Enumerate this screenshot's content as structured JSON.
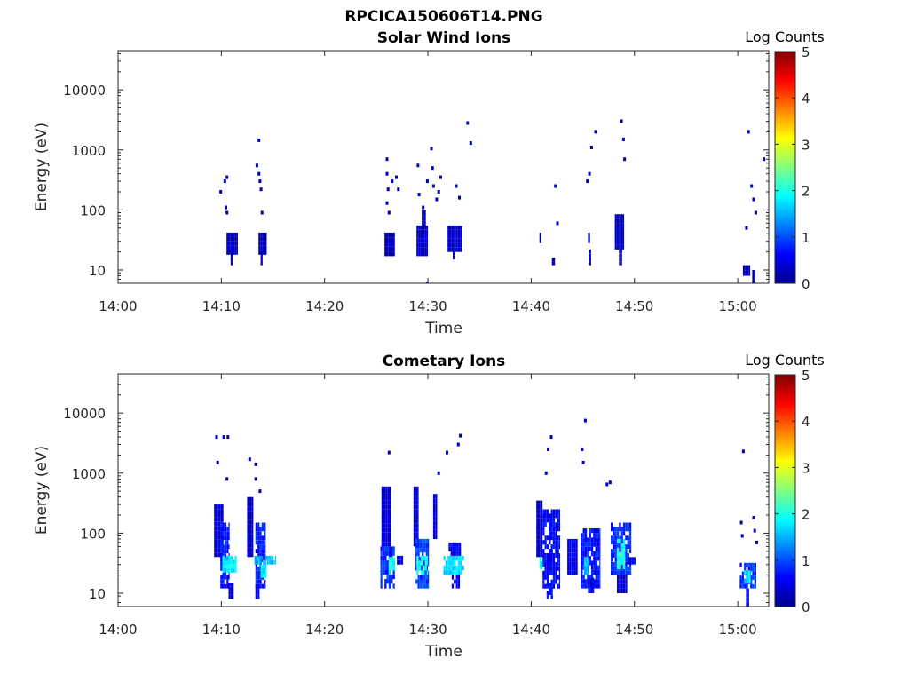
{
  "figure_title": "RPCICA150606T14.PNG",
  "colorbar_title": "Log Counts",
  "colormap": [
    "#00008f",
    "#0000ff",
    "#0080ff",
    "#00ffff",
    "#80ff80",
    "#ffff00",
    "#ff8000",
    "#ff0000",
    "#800000"
  ],
  "chart_data": [
    {
      "type": "heatmap",
      "title": "Solar Wind Ions",
      "xlabel": "Time",
      "ylabel": "Energy (eV)",
      "x_ticks": [
        "14:00",
        "14:10",
        "14:20",
        "14:30",
        "14:40",
        "14:50",
        "15:00"
      ],
      "x_range_minutes": [
        0,
        63
      ],
      "y_scale": "log",
      "y_range": [
        6,
        45000
      ],
      "y_ticks": [
        {
          "value": 10,
          "label": "10"
        },
        {
          "value": 100,
          "label": "100"
        },
        {
          "value": 1000,
          "label": "1000"
        },
        {
          "value": 10000,
          "label": "10000"
        }
      ],
      "colorbar": {
        "label": "Log Counts",
        "range": [
          0,
          5
        ],
        "ticks": [
          "0",
          "1",
          "2",
          "3",
          "4",
          "5"
        ]
      },
      "legend": "colorbar right",
      "blocks": [
        {
          "t0": 10.5,
          "t1": 11.6,
          "e0": 18,
          "e1": 42,
          "c": 0.25
        },
        {
          "t0": 10.9,
          "t1": 11.1,
          "e0": 12,
          "e1": 22,
          "c": 0.2
        },
        {
          "t0": 13.6,
          "t1": 14.4,
          "e0": 18,
          "e1": 42,
          "c": 0.25
        },
        {
          "t0": 13.8,
          "t1": 14.0,
          "e0": 12,
          "e1": 20,
          "c": 0.2
        },
        {
          "t0": 25.8,
          "t1": 26.8,
          "e0": 17,
          "e1": 42,
          "c": 0.3
        },
        {
          "t0": 28.9,
          "t1": 30.0,
          "e0": 17,
          "e1": 55,
          "c": 0.35
        },
        {
          "t0": 29.4,
          "t1": 29.8,
          "e0": 55,
          "e1": 100,
          "c": 0.2
        },
        {
          "t0": 31.9,
          "t1": 33.3,
          "e0": 20,
          "e1": 55,
          "c": 0.3
        },
        {
          "t0": 32.4,
          "t1": 32.6,
          "e0": 15,
          "e1": 20,
          "c": 0.2
        },
        {
          "t0": 40.8,
          "t1": 41.0,
          "e0": 28,
          "e1": 42,
          "c": 0.2
        },
        {
          "t0": 42.0,
          "t1": 42.3,
          "e0": 12,
          "e1": 16,
          "c": 0.2
        },
        {
          "t0": 45.5,
          "t1": 45.7,
          "e0": 28,
          "e1": 42,
          "c": 0.2
        },
        {
          "t0": 45.6,
          "t1": 45.8,
          "e0": 12,
          "e1": 22,
          "c": 0.2
        },
        {
          "t0": 48.1,
          "t1": 49.0,
          "e0": 22,
          "e1": 85,
          "c": 0.3
        },
        {
          "t0": 48.5,
          "t1": 48.8,
          "e0": 12,
          "e1": 22,
          "c": 0.2
        },
        {
          "t0": 60.5,
          "t1": 61.2,
          "e0": 8,
          "e1": 12,
          "c": 0.2
        },
        {
          "t0": 61.4,
          "t1": 61.7,
          "e0": 6,
          "e1": 10,
          "c": 0.2
        }
      ],
      "points": [
        {
          "t": 9.9,
          "e": 200,
          "c": 0.2
        },
        {
          "t": 10.3,
          "e": 300,
          "c": 0.2
        },
        {
          "t": 10.5,
          "e": 350,
          "c": 0.2
        },
        {
          "t": 10.4,
          "e": 110,
          "c": 0.2
        },
        {
          "t": 10.5,
          "e": 90,
          "c": 0.2
        },
        {
          "t": 13.4,
          "e": 550,
          "c": 0.2
        },
        {
          "t": 13.6,
          "e": 1450,
          "c": 0.2
        },
        {
          "t": 13.6,
          "e": 400,
          "c": 0.2
        },
        {
          "t": 13.8,
          "e": 220,
          "c": 0.2
        },
        {
          "t": 13.9,
          "e": 90,
          "c": 0.2
        },
        {
          "t": 13.7,
          "e": 300,
          "c": 0.2
        },
        {
          "t": 26.0,
          "e": 700,
          "c": 0.2
        },
        {
          "t": 26.0,
          "e": 400,
          "c": 0.2
        },
        {
          "t": 26.1,
          "e": 220,
          "c": 0.2
        },
        {
          "t": 26.0,
          "e": 130,
          "c": 0.2
        },
        {
          "t": 26.2,
          "e": 90,
          "c": 0.2
        },
        {
          "t": 26.5,
          "e": 300,
          "c": 0.2
        },
        {
          "t": 26.9,
          "e": 350,
          "c": 0.2
        },
        {
          "t": 27.1,
          "e": 220,
          "c": 0.2
        },
        {
          "t": 29.0,
          "e": 550,
          "c": 0.2
        },
        {
          "t": 29.1,
          "e": 180,
          "c": 0.2
        },
        {
          "t": 29.5,
          "e": 110,
          "c": 0.2
        },
        {
          "t": 29.9,
          "e": 300,
          "c": 0.2
        },
        {
          "t": 30.3,
          "e": 1050,
          "c": 0.2
        },
        {
          "t": 30.4,
          "e": 500,
          "c": 0.2
        },
        {
          "t": 30.5,
          "e": 250,
          "c": 0.2
        },
        {
          "t": 30.8,
          "e": 150,
          "c": 0.2
        },
        {
          "t": 31.0,
          "e": 200,
          "c": 0.2
        },
        {
          "t": 31.2,
          "e": 350,
          "c": 0.2
        },
        {
          "t": 32.7,
          "e": 250,
          "c": 0.2
        },
        {
          "t": 33.0,
          "e": 160,
          "c": 0.2
        },
        {
          "t": 33.8,
          "e": 2800,
          "c": 0.2
        },
        {
          "t": 34.1,
          "e": 1300,
          "c": 0.2
        },
        {
          "t": 29.9,
          "e": 6,
          "c": 0.2
        },
        {
          "t": 42.3,
          "e": 250,
          "c": 0.2
        },
        {
          "t": 42.5,
          "e": 60,
          "c": 0.2
        },
        {
          "t": 45.4,
          "e": 300,
          "c": 0.2
        },
        {
          "t": 45.6,
          "e": 400,
          "c": 0.2
        },
        {
          "t": 45.8,
          "e": 1100,
          "c": 0.2
        },
        {
          "t": 46.2,
          "e": 2000,
          "c": 0.2
        },
        {
          "t": 48.7,
          "e": 3000,
          "c": 0.2
        },
        {
          "t": 48.9,
          "e": 1500,
          "c": 0.2
        },
        {
          "t": 49.0,
          "e": 700,
          "c": 0.2
        },
        {
          "t": 61.0,
          "e": 2000,
          "c": 0.2
        },
        {
          "t": 61.3,
          "e": 250,
          "c": 0.2
        },
        {
          "t": 61.5,
          "e": 150,
          "c": 0.2
        },
        {
          "t": 61.7,
          "e": 90,
          "c": 0.2
        },
        {
          "t": 62.5,
          "e": 700,
          "c": 0.2
        },
        {
          "t": 60.8,
          "e": 50,
          "c": 0.2
        }
      ]
    },
    {
      "type": "heatmap",
      "title": "Cometary Ions",
      "xlabel": "Time",
      "ylabel": "Energy (eV)",
      "x_ticks": [
        "14:00",
        "14:10",
        "14:20",
        "14:30",
        "14:40",
        "14:50",
        "15:00"
      ],
      "x_range_minutes": [
        0,
        63
      ],
      "y_scale": "log",
      "y_range": [
        6,
        45000
      ],
      "y_ticks": [
        {
          "value": 10,
          "label": "10"
        },
        {
          "value": 100,
          "label": "100"
        },
        {
          "value": 1000,
          "label": "1000"
        },
        {
          "value": 10000,
          "label": "10000"
        }
      ],
      "colorbar": {
        "label": "Log Counts",
        "range": [
          0,
          5
        ],
        "ticks": [
          "0",
          "1",
          "2",
          "3",
          "4",
          "5"
        ]
      },
      "legend": "colorbar right",
      "blocks": [
        {
          "t0": 9.3,
          "t1": 10.2,
          "e0": 40,
          "e1": 300,
          "c": 0.35
        },
        {
          "t0": 9.9,
          "t1": 10.8,
          "e0": 12,
          "e1": 150,
          "c": 0.7
        },
        {
          "t0": 10.1,
          "t1": 11.5,
          "e0": 22,
          "e1": 42,
          "c": 1.8
        },
        {
          "t0": 10.3,
          "t1": 10.9,
          "e0": 30,
          "e1": 40,
          "c": 1.6
        },
        {
          "t0": 10.7,
          "t1": 11.2,
          "e0": 8,
          "e1": 15,
          "c": 0.4
        },
        {
          "t0": 12.5,
          "t1": 13.1,
          "e0": 40,
          "e1": 400,
          "c": 0.35
        },
        {
          "t0": 13.3,
          "t1": 14.3,
          "e0": 12,
          "e1": 150,
          "c": 0.7
        },
        {
          "t0": 13.2,
          "t1": 15.3,
          "e0": 30,
          "e1": 42,
          "c": 1.5
        },
        {
          "t0": 13.8,
          "t1": 14.4,
          "e0": 18,
          "e1": 30,
          "c": 1.8
        },
        {
          "t0": 13.3,
          "t1": 13.7,
          "e0": 8,
          "e1": 14,
          "c": 0.5
        },
        {
          "t0": 25.5,
          "t1": 26.4,
          "e0": 60,
          "e1": 600,
          "c": 0.35
        },
        {
          "t0": 25.4,
          "t1": 26.8,
          "e0": 12,
          "e1": 60,
          "c": 0.8
        },
        {
          "t0": 26.2,
          "t1": 26.8,
          "e0": 20,
          "e1": 40,
          "c": 1.9
        },
        {
          "t0": 27.0,
          "t1": 27.6,
          "e0": 30,
          "e1": 42,
          "c": 0.5
        },
        {
          "t0": 28.6,
          "t1": 29.1,
          "e0": 60,
          "e1": 600,
          "c": 0.35
        },
        {
          "t0": 28.8,
          "t1": 30.1,
          "e0": 12,
          "e1": 80,
          "c": 0.9
        },
        {
          "t0": 28.9,
          "t1": 30.0,
          "e0": 20,
          "e1": 42,
          "c": 2.0
        },
        {
          "t0": 30.5,
          "t1": 30.9,
          "e0": 80,
          "e1": 450,
          "c": 0.4
        },
        {
          "t0": 31.5,
          "t1": 33.5,
          "e0": 20,
          "e1": 42,
          "c": 1.7
        },
        {
          "t0": 32.0,
          "t1": 33.2,
          "e0": 42,
          "e1": 70,
          "c": 0.6
        },
        {
          "t0": 32.3,
          "t1": 33.1,
          "e0": 12,
          "e1": 20,
          "c": 0.6
        },
        {
          "t0": 40.5,
          "t1": 41.1,
          "e0": 40,
          "e1": 350,
          "c": 0.35
        },
        {
          "t0": 41.1,
          "t1": 42.8,
          "e0": 12,
          "e1": 250,
          "c": 0.6
        },
        {
          "t0": 40.8,
          "t1": 41.1,
          "e0": 25,
          "e1": 40,
          "c": 1.8
        },
        {
          "t0": 41.5,
          "t1": 42.1,
          "e0": 8,
          "e1": 15,
          "c": 0.7
        },
        {
          "t0": 43.5,
          "t1": 44.5,
          "e0": 20,
          "e1": 80,
          "c": 0.5
        },
        {
          "t0": 44.8,
          "t1": 46.7,
          "e0": 12,
          "e1": 120,
          "c": 0.7
        },
        {
          "t0": 45.1,
          "t1": 45.6,
          "e0": 20,
          "e1": 40,
          "c": 1.5
        },
        {
          "t0": 45.5,
          "t1": 46.1,
          "e0": 10,
          "e1": 18,
          "c": 0.5
        },
        {
          "t0": 47.7,
          "t1": 49.7,
          "e0": 20,
          "e1": 150,
          "c": 0.8
        },
        {
          "t0": 48.3,
          "t1": 49.1,
          "e0": 25,
          "e1": 80,
          "c": 2.0
        },
        {
          "t0": 48.3,
          "t1": 49.3,
          "e0": 10,
          "e1": 20,
          "c": 0.4
        },
        {
          "t0": 49.3,
          "t1": 50.1,
          "e0": 30,
          "e1": 40,
          "c": 0.5
        },
        {
          "t0": 60.2,
          "t1": 61.8,
          "e0": 12,
          "e1": 32,
          "c": 0.8
        },
        {
          "t0": 60.6,
          "t1": 61.3,
          "e0": 15,
          "e1": 24,
          "c": 1.6
        },
        {
          "t0": 60.8,
          "t1": 61.1,
          "e0": 6,
          "e1": 12,
          "c": 0.5
        }
      ],
      "points": [
        {
          "t": 9.5,
          "e": 4000,
          "c": 0.2
        },
        {
          "t": 10.2,
          "e": 4000,
          "c": 0.2
        },
        {
          "t": 10.6,
          "e": 4000,
          "c": 0.2
        },
        {
          "t": 9.6,
          "e": 1500,
          "c": 0.2
        },
        {
          "t": 10.5,
          "e": 800,
          "c": 0.2
        },
        {
          "t": 12.7,
          "e": 1700,
          "c": 0.2
        },
        {
          "t": 13.3,
          "e": 1400,
          "c": 0.2
        },
        {
          "t": 13.3,
          "e": 800,
          "c": 0.2
        },
        {
          "t": 13.7,
          "e": 500,
          "c": 0.2
        },
        {
          "t": 26.2,
          "e": 2200,
          "c": 0.2
        },
        {
          "t": 31.0,
          "e": 1000,
          "c": 0.2
        },
        {
          "t": 31.8,
          "e": 2200,
          "c": 0.2
        },
        {
          "t": 32.9,
          "e": 3000,
          "c": 0.2
        },
        {
          "t": 33.1,
          "e": 4200,
          "c": 0.2
        },
        {
          "t": 41.4,
          "e": 1000,
          "c": 0.2
        },
        {
          "t": 41.6,
          "e": 2500,
          "c": 0.2
        },
        {
          "t": 41.9,
          "e": 4000,
          "c": 0.2
        },
        {
          "t": 44.9,
          "e": 2500,
          "c": 0.2
        },
        {
          "t": 45.0,
          "e": 1500,
          "c": 0.2
        },
        {
          "t": 45.2,
          "e": 7500,
          "c": 0.2
        },
        {
          "t": 47.3,
          "e": 650,
          "c": 0.3
        },
        {
          "t": 47.6,
          "e": 700,
          "c": 0.3
        },
        {
          "t": 60.5,
          "e": 2300,
          "c": 0.2
        },
        {
          "t": 60.3,
          "e": 150,
          "c": 0.2
        },
        {
          "t": 60.4,
          "e": 90,
          "c": 0.2
        },
        {
          "t": 61.5,
          "e": 180,
          "c": 0.2
        },
        {
          "t": 61.6,
          "e": 110,
          "c": 0.2
        },
        {
          "t": 61.8,
          "e": 70,
          "c": 0.2
        }
      ]
    }
  ]
}
